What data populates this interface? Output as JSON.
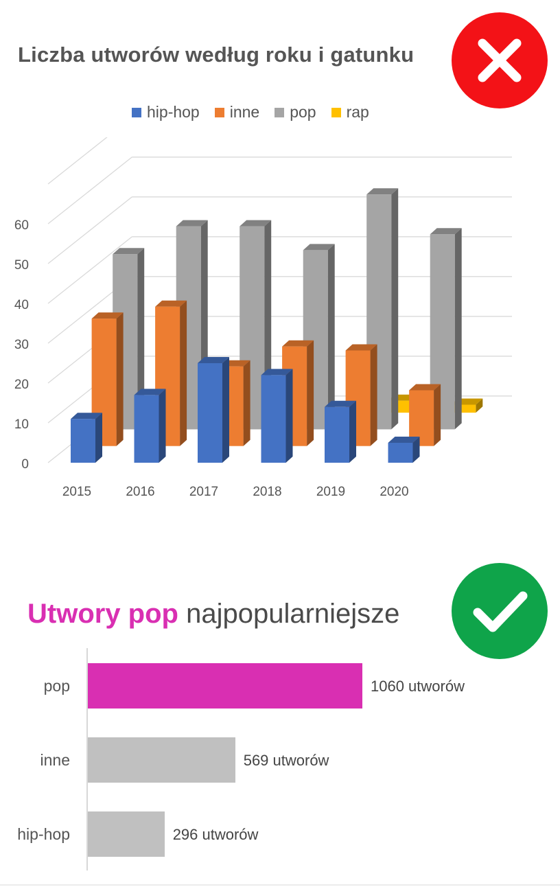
{
  "title_bad": "Liczba utworów według roku i gatunku",
  "title_good_accent": "Utwory pop",
  "title_good_rest": " najpopularniejsze",
  "badge_bad_icon": "x-icon",
  "badge_good_icon": "checkmark-icon",
  "colors": {
    "hiphop": "#4472c4",
    "inne": "#ed7d31",
    "pop": "#a5a5a5",
    "rap": "#ffc000",
    "highlight": "#d92fb2",
    "muted_bar": "#c0c0c0",
    "bad": "#f31217",
    "good": "#0fa44a"
  },
  "chart_data": [
    {
      "type": "bar",
      "variant": "3d-clustered",
      "title": "Liczba utworów według roku i gatunku",
      "categories": [
        "2015",
        "2016",
        "2017",
        "2018",
        "2019",
        "2020"
      ],
      "series": [
        {
          "name": "hip-hop",
          "values": [
            11,
            17,
            25,
            22,
            14,
            5
          ]
        },
        {
          "name": "inne",
          "values": [
            32,
            35,
            20,
            25,
            24,
            14
          ]
        },
        {
          "name": "pop",
          "values": [
            44,
            51,
            51,
            45,
            59,
            49
          ]
        },
        {
          "name": "rap",
          "values": [
            1,
            0,
            0,
            0,
            3,
            2
          ]
        }
      ],
      "ylim": [
        0,
        60
      ],
      "yticks": [
        "0",
        "10",
        "20",
        "30",
        "40",
        "50",
        "60"
      ],
      "legend": "top",
      "grid": true
    },
    {
      "type": "bar",
      "orientation": "horizontal",
      "title": "Utwory pop najpopularniejsze",
      "categories": [
        "pop",
        "inne",
        "hip-hop"
      ],
      "values": [
        1060,
        569,
        296
      ],
      "value_labels": [
        "1060 utworów",
        "569 utworów",
        "296 utworów"
      ],
      "highlight": "pop"
    }
  ]
}
